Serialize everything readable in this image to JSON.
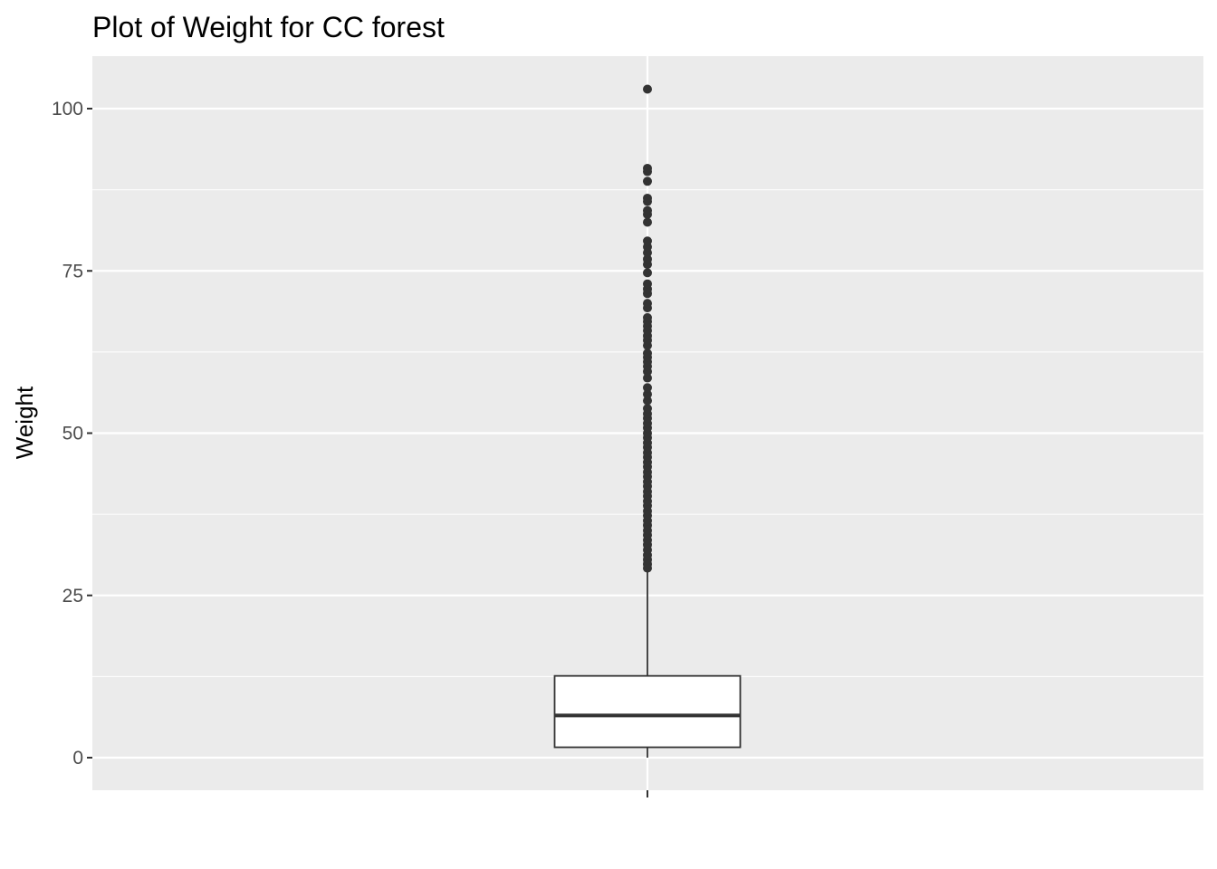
{
  "chart_data": {
    "type": "box",
    "title": "Plot of Weight for CC forest",
    "xlabel": "",
    "ylabel": "Weight",
    "ylim": [
      -5,
      108
    ],
    "y_ticks": [
      0,
      25,
      50,
      75,
      100
    ],
    "y_tick_labels": [
      "0",
      "25",
      "50",
      "75",
      "100"
    ],
    "grid": true,
    "legend": "none",
    "colors": {
      "panel_background": "#EBEBEB",
      "grid_line": "#FFFFFF",
      "box_fill": "#FFFFFF",
      "box_line": "#333333",
      "outlier": "#333333",
      "tick_label": "#4D4D4D"
    },
    "series": [
      {
        "stats": {
          "min": 0.0,
          "q1": 1.6,
          "median": 6.5,
          "q3": 12.6,
          "whisker_high": 29.0
        },
        "outliers": [
          29.2,
          29.8,
          30.5,
          31.2,
          32.0,
          32.8,
          33.5,
          34.3,
          35.0,
          35.8,
          36.5,
          37.3,
          38.0,
          38.8,
          39.5,
          40.3,
          41.0,
          41.8,
          42.5,
          43.3,
          44.0,
          44.8,
          45.5,
          46.3,
          47.0,
          47.8,
          48.5,
          49.3,
          50.0,
          50.8,
          51.5,
          52.3,
          53.0,
          53.8,
          55.0,
          56.0,
          57.0,
          58.5,
          59.5,
          60.3,
          61.0,
          61.7,
          62.3,
          63.5,
          64.3,
          65.0,
          65.8,
          66.5,
          67.2,
          67.8,
          69.3,
          70.0,
          71.5,
          72.2,
          73.0,
          74.7,
          76.0,
          76.8,
          77.8,
          78.7,
          79.6,
          82.5,
          83.7,
          84.3,
          85.7,
          86.2,
          88.8,
          90.3,
          90.8,
          103.0
        ]
      }
    ]
  }
}
